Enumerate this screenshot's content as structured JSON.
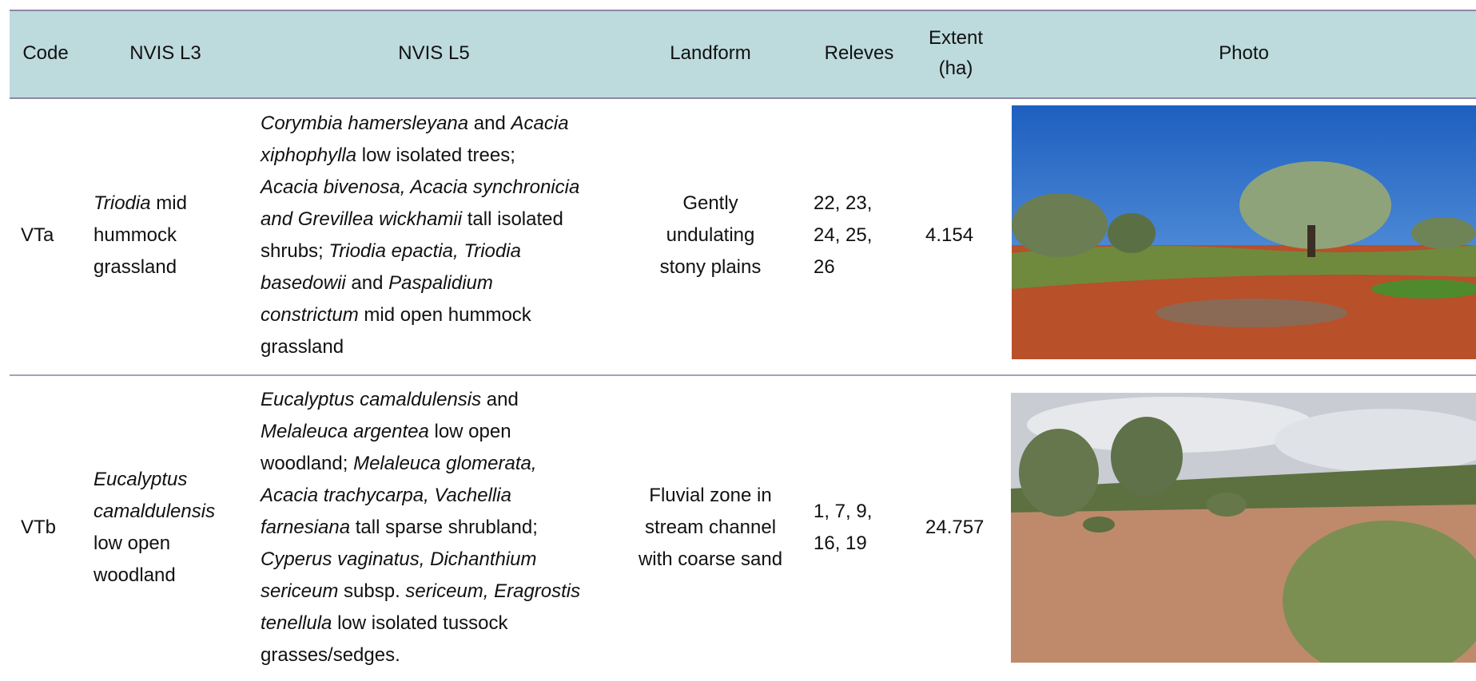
{
  "header": {
    "columns": [
      "Code",
      "NVIS L3",
      "NVIS L5",
      "Landform",
      "Releves",
      "Extent (ha)",
      "Photo"
    ]
  },
  "rows": [
    {
      "code": "VTa",
      "nvis_l3": [
        [
          {
            "text": "Triodia",
            "italic": true
          },
          {
            "text": " mid"
          }
        ],
        [
          {
            "text": "hummock"
          }
        ],
        [
          {
            "text": "grassland"
          }
        ]
      ],
      "nvis_l5": [
        [
          {
            "text": "Corymbia hamersleyana",
            "italic": true
          },
          {
            "text": " and "
          },
          {
            "text": "Acacia",
            "italic": true
          }
        ],
        [
          {
            "text": "xiphophylla",
            "italic": true
          },
          {
            "text": " low isolated trees;"
          }
        ],
        [
          {
            "text": "Acacia bivenosa, Acacia synchronicia",
            "italic": true
          }
        ],
        [
          {
            "text": "and Grevillea wickhamii",
            "italic": true
          },
          {
            "text": " tall isolated"
          }
        ],
        [
          {
            "text": "shrubs; "
          },
          {
            "text": "Triodia epactia, Triodia",
            "italic": true
          }
        ],
        [
          {
            "text": "basedowii",
            "italic": true
          },
          {
            "text": " and "
          },
          {
            "text": "Paspalidium",
            "italic": true
          }
        ],
        [
          {
            "text": "constrictum",
            "italic": true
          },
          {
            "text": " mid open hummock"
          }
        ],
        [
          {
            "text": "grassland"
          }
        ]
      ],
      "landform": [
        [
          {
            "text": "Gently"
          }
        ],
        [
          {
            "text": "undulating"
          }
        ],
        [
          {
            "text": "stony plains"
          }
        ]
      ],
      "releves": [
        [
          {
            "text": "22, 23,"
          }
        ],
        [
          {
            "text": "24, 25,"
          }
        ],
        [
          {
            "text": "26"
          }
        ]
      ],
      "extent": "4.154"
    },
    {
      "code": "VTb",
      "nvis_l3": [
        [
          {
            "text": "Eucalyptus",
            "italic": true
          }
        ],
        [
          {
            "text": "camaldulensis",
            "italic": true
          }
        ],
        [
          {
            "text": "low open"
          }
        ],
        [
          {
            "text": "woodland"
          }
        ]
      ],
      "nvis_l5": [
        [
          {
            "text": "Eucalyptus camaldulensis",
            "italic": true
          },
          {
            "text": " and"
          }
        ],
        [
          {
            "text": "Melaleuca argentea",
            "italic": true
          },
          {
            "text": " low open"
          }
        ],
        [
          {
            "text": "woodland; "
          },
          {
            "text": "Melaleuca glomerata,",
            "italic": true
          }
        ],
        [
          {
            "text": "Acacia trachycarpa, Vachellia",
            "italic": true
          }
        ],
        [
          {
            "text": "farnesiana",
            "italic": true
          },
          {
            "text": " tall sparse shrubland;"
          }
        ],
        [
          {
            "text": "Cyperus vaginatus, Dichanthium",
            "italic": true
          }
        ],
        [
          {
            "text": "sericeum",
            "italic": true
          },
          {
            "text": " subsp. "
          },
          {
            "text": "sericeum, Eragrostis",
            "italic": true
          }
        ],
        [
          {
            "text": "tenellula",
            "italic": true
          },
          {
            "text": " low isolated tussock"
          }
        ],
        [
          {
            "text": "grasses/sedges."
          }
        ]
      ],
      "landform": [
        [
          {
            "text": "Fluvial zone in"
          }
        ],
        [
          {
            "text": "stream channel"
          }
        ],
        [
          {
            "text": "with coarse sand"
          }
        ]
      ],
      "releves": [
        [
          {
            "text": "1, 7, 9,"
          }
        ],
        [
          {
            "text": "16, 19"
          }
        ]
      ],
      "extent": "24.757"
    }
  ]
}
